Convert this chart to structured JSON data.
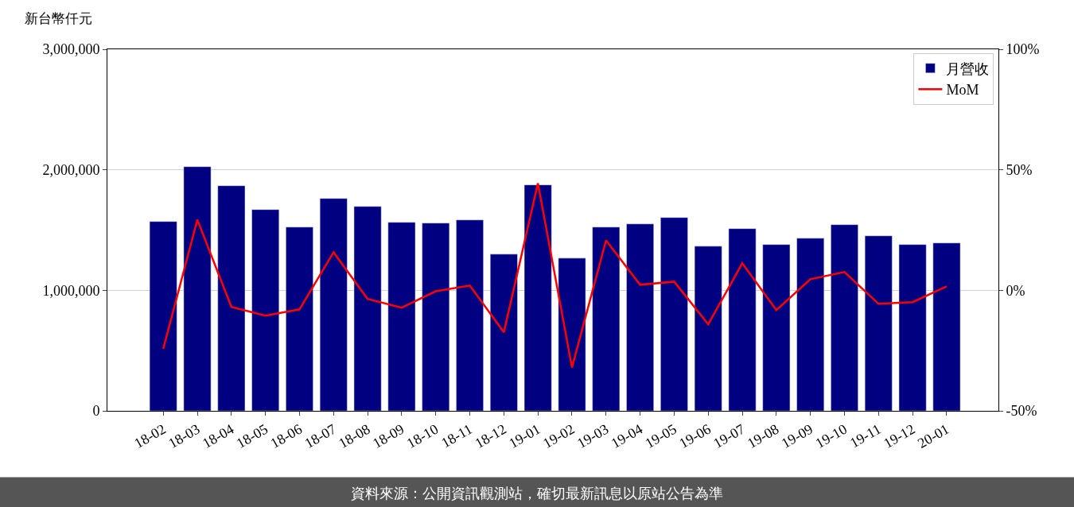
{
  "chart_data": {
    "type": "bar",
    "ylabel": "新台幣仟元",
    "categories": [
      "18-02",
      "18-03",
      "18-04",
      "18-05",
      "18-06",
      "18-07",
      "18-08",
      "18-09",
      "18-10",
      "18-11",
      "18-12",
      "19-01",
      "19-02",
      "19-03",
      "19-04",
      "19-05",
      "19-06",
      "19-07",
      "19-08",
      "19-09",
      "19-10",
      "19-11",
      "19-12",
      "20-01"
    ],
    "series": [
      {
        "name": "月營收",
        "color": "#000080",
        "values": [
          1571000,
          2026000,
          1868000,
          1670000,
          1525000,
          1762000,
          1696000,
          1564000,
          1558000,
          1584000,
          1300000,
          1875000,
          1267000,
          1525000,
          1551000,
          1604000,
          1366000,
          1512000,
          1380000,
          1432000,
          1545000,
          1452000,
          1380000,
          1393000
        ]
      },
      {
        "name": "MoM",
        "type": "line",
        "axis": "y2",
        "color": "#ff0000",
        "values": [
          -24.3,
          29.3,
          -6.9,
          -10.5,
          -7.9,
          15.8,
          -3.6,
          -7.2,
          -0.4,
          2.0,
          -17.4,
          44.4,
          -32.0,
          20.7,
          2.3,
          3.6,
          -14.1,
          11.2,
          -8.2,
          4.6,
          7.6,
          -5.6,
          -4.9,
          1.6
        ]
      }
    ],
    "ylim": [
      0,
      3000000
    ],
    "yticks": [
      {
        "value": 0,
        "label": "0"
      },
      {
        "value": 1000000,
        "label": "1,000,000"
      },
      {
        "value": 2000000,
        "label": "2,000,000"
      },
      {
        "value": 3000000,
        "label": "3,000,000"
      }
    ],
    "y2lim": [
      -50,
      100
    ],
    "y2ticks": [
      {
        "value": -50,
        "label": "-50%"
      },
      {
        "value": 0,
        "label": "0%"
      },
      {
        "value": 50,
        "label": "50%"
      },
      {
        "value": 100,
        "label": "100%"
      }
    ],
    "grid": "y",
    "legend": "top right",
    "marker": "none",
    "line_style": "solid",
    "annotations": [
      "資料來源：公開資訊觀測站，確切最新訊息以原站公告為準"
    ]
  }
}
